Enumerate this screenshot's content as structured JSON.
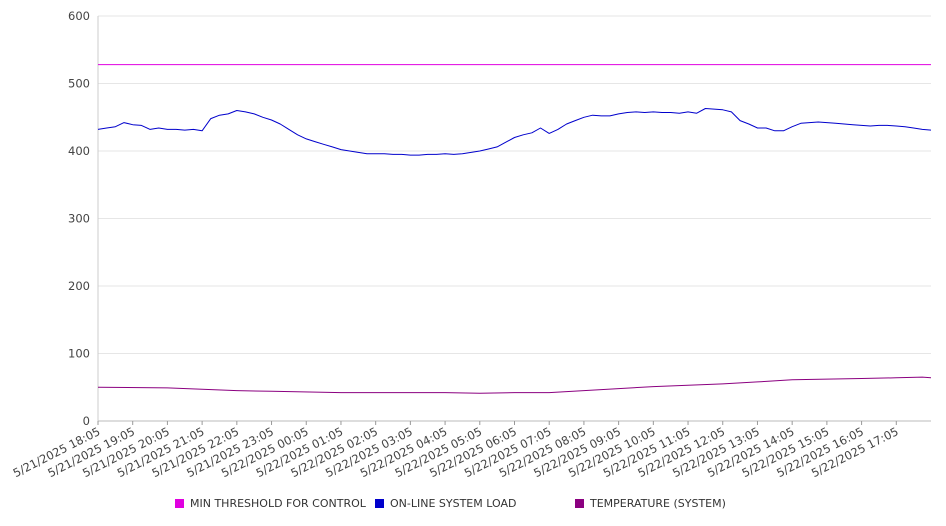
{
  "chart_data": {
    "type": "line",
    "ylim": [
      0,
      600
    ],
    "y_ticks": [
      0,
      100,
      200,
      300,
      400,
      500,
      600
    ],
    "grid": true,
    "legend_position": "bottom",
    "x_tick_labels": [
      "5/21/2025 18:05",
      "5/21/2025 19:05",
      "5/21/2025 20:05",
      "5/21/2025 21:05",
      "5/21/2025 22:05",
      "5/21/2025 23:05",
      "5/22/2025 00:05",
      "5/22/2025 01:05",
      "5/22/2025 02:05",
      "5/22/2025 03:05",
      "5/22/2025 04:05",
      "5/22/2025 05:05",
      "5/22/2025 06:05",
      "5/22/2025 07:05",
      "5/22/2025 08:05",
      "5/22/2025 09:05",
      "5/22/2025 10:05",
      "5/22/2025 11:05",
      "5/22/2025 12:05",
      "5/22/2025 13:05",
      "5/22/2025 14:05",
      "5/22/2025 15:05",
      "5/22/2025 16:05",
      "5/22/2025 17:05"
    ],
    "x_end": "5/22/2025 18:05",
    "series": [
      {
        "name": "MIN THRESHOLD FOR CONTROL",
        "color": "#e000e0",
        "points": [
          [
            "5/21/2025 18:05",
            528
          ],
          [
            "5/22/2025 18:05",
            528
          ]
        ]
      },
      {
        "name": "ON-LINE SYSTEM LOAD",
        "color": "#0000cc",
        "points": [
          [
            "5/21/2025 18:05",
            432
          ],
          [
            "5/21/2025 18:20",
            434
          ],
          [
            "5/21/2025 18:35",
            436
          ],
          [
            "5/21/2025 18:50",
            442
          ],
          [
            "5/21/2025 19:05",
            439
          ],
          [
            "5/21/2025 19:20",
            438
          ],
          [
            "5/21/2025 19:35",
            432
          ],
          [
            "5/21/2025 19:50",
            434
          ],
          [
            "5/21/2025 20:05",
            432
          ],
          [
            "5/21/2025 20:20",
            432
          ],
          [
            "5/21/2025 20:35",
            431
          ],
          [
            "5/21/2025 20:50",
            432
          ],
          [
            "5/21/2025 21:05",
            430
          ],
          [
            "5/21/2025 21:20",
            448
          ],
          [
            "5/21/2025 21:35",
            453
          ],
          [
            "5/21/2025 21:50",
            455
          ],
          [
            "5/21/2025 22:05",
            460
          ],
          [
            "5/21/2025 22:20",
            458
          ],
          [
            "5/21/2025 22:35",
            455
          ],
          [
            "5/21/2025 22:50",
            450
          ],
          [
            "5/21/2025 23:05",
            446
          ],
          [
            "5/21/2025 23:20",
            440
          ],
          [
            "5/21/2025 23:35",
            432
          ],
          [
            "5/21/2025 23:50",
            424
          ],
          [
            "5/22/2025 00:05",
            418
          ],
          [
            "5/22/2025 00:20",
            414
          ],
          [
            "5/22/2025 00:35",
            410
          ],
          [
            "5/22/2025 00:50",
            406
          ],
          [
            "5/22/2025 01:05",
            402
          ],
          [
            "5/22/2025 01:20",
            400
          ],
          [
            "5/22/2025 01:35",
            398
          ],
          [
            "5/22/2025 01:50",
            396
          ],
          [
            "5/22/2025 02:05",
            396
          ],
          [
            "5/22/2025 02:20",
            396
          ],
          [
            "5/22/2025 02:35",
            395
          ],
          [
            "5/22/2025 02:50",
            395
          ],
          [
            "5/22/2025 03:05",
            394
          ],
          [
            "5/22/2025 03:20",
            394
          ],
          [
            "5/22/2025 03:35",
            395
          ],
          [
            "5/22/2025 03:50",
            395
          ],
          [
            "5/22/2025 04:05",
            396
          ],
          [
            "5/22/2025 04:20",
            395
          ],
          [
            "5/22/2025 04:35",
            396
          ],
          [
            "5/22/2025 04:50",
            398
          ],
          [
            "5/22/2025 05:05",
            400
          ],
          [
            "5/22/2025 05:20",
            403
          ],
          [
            "5/22/2025 05:35",
            406
          ],
          [
            "5/22/2025 05:50",
            413
          ],
          [
            "5/22/2025 06:05",
            420
          ],
          [
            "5/22/2025 06:20",
            424
          ],
          [
            "5/22/2025 06:35",
            427
          ],
          [
            "5/22/2025 06:50",
            434
          ],
          [
            "5/22/2025 07:05",
            426
          ],
          [
            "5/22/2025 07:20",
            432
          ],
          [
            "5/22/2025 07:35",
            440
          ],
          [
            "5/22/2025 07:50",
            445
          ],
          [
            "5/22/2025 08:05",
            450
          ],
          [
            "5/22/2025 08:20",
            453
          ],
          [
            "5/22/2025 08:35",
            452
          ],
          [
            "5/22/2025 08:50",
            452
          ],
          [
            "5/22/2025 09:05",
            455
          ],
          [
            "5/22/2025 09:20",
            457
          ],
          [
            "5/22/2025 09:35",
            458
          ],
          [
            "5/22/2025 09:50",
            457
          ],
          [
            "5/22/2025 10:05",
            458
          ],
          [
            "5/22/2025 10:20",
            457
          ],
          [
            "5/22/2025 10:35",
            457
          ],
          [
            "5/22/2025 10:50",
            456
          ],
          [
            "5/22/2025 11:05",
            458
          ],
          [
            "5/22/2025 11:20",
            456
          ],
          [
            "5/22/2025 11:35",
            463
          ],
          [
            "5/22/2025 11:50",
            462
          ],
          [
            "5/22/2025 12:05",
            461
          ],
          [
            "5/22/2025 12:20",
            458
          ],
          [
            "5/22/2025 12:35",
            445
          ],
          [
            "5/22/2025 12:50",
            440
          ],
          [
            "5/22/2025 13:05",
            434
          ],
          [
            "5/22/2025 13:20",
            434
          ],
          [
            "5/22/2025 13:35",
            430
          ],
          [
            "5/22/2025 13:50",
            430
          ],
          [
            "5/22/2025 14:05",
            436
          ],
          [
            "5/22/2025 14:20",
            441
          ],
          [
            "5/22/2025 14:35",
            442
          ],
          [
            "5/22/2025 14:50",
            443
          ],
          [
            "5/22/2025 15:05",
            442
          ],
          [
            "5/22/2025 15:20",
            441
          ],
          [
            "5/22/2025 15:35",
            440
          ],
          [
            "5/22/2025 15:50",
            439
          ],
          [
            "5/22/2025 16:05",
            438
          ],
          [
            "5/22/2025 16:20",
            437
          ],
          [
            "5/22/2025 16:35",
            438
          ],
          [
            "5/22/2025 16:50",
            438
          ],
          [
            "5/22/2025 17:05",
            437
          ],
          [
            "5/22/2025 17:20",
            436
          ],
          [
            "5/22/2025 17:35",
            434
          ],
          [
            "5/22/2025 17:50",
            432
          ],
          [
            "5/22/2025 18:05",
            431
          ]
        ]
      },
      {
        "name": "TEMPERATURE (SYSTEM)",
        "color": "#8b0080",
        "points": [
          [
            "5/21/2025 18:05",
            50
          ],
          [
            "5/21/2025 20:05",
            49
          ],
          [
            "5/21/2025 21:05",
            47
          ],
          [
            "5/21/2025 22:05",
            45
          ],
          [
            "5/21/2025 23:05",
            44
          ],
          [
            "5/22/2025 01:05",
            42
          ],
          [
            "5/22/2025 04:05",
            42
          ],
          [
            "5/22/2025 05:05",
            41
          ],
          [
            "5/22/2025 06:05",
            42
          ],
          [
            "5/22/2025 07:05",
            42
          ],
          [
            "5/22/2025 08:05",
            45
          ],
          [
            "5/22/2025 09:05",
            48
          ],
          [
            "5/22/2025 10:05",
            51
          ],
          [
            "5/22/2025 11:05",
            53
          ],
          [
            "5/22/2025 12:05",
            55
          ],
          [
            "5/22/2025 13:05",
            58
          ],
          [
            "5/22/2025 14:05",
            61
          ],
          [
            "5/22/2025 15:05",
            62
          ],
          [
            "5/22/2025 16:05",
            63
          ],
          [
            "5/22/2025 17:05",
            64
          ],
          [
            "5/22/2025 17:50",
            65
          ],
          [
            "5/22/2025 18:05",
            64
          ]
        ]
      }
    ]
  }
}
